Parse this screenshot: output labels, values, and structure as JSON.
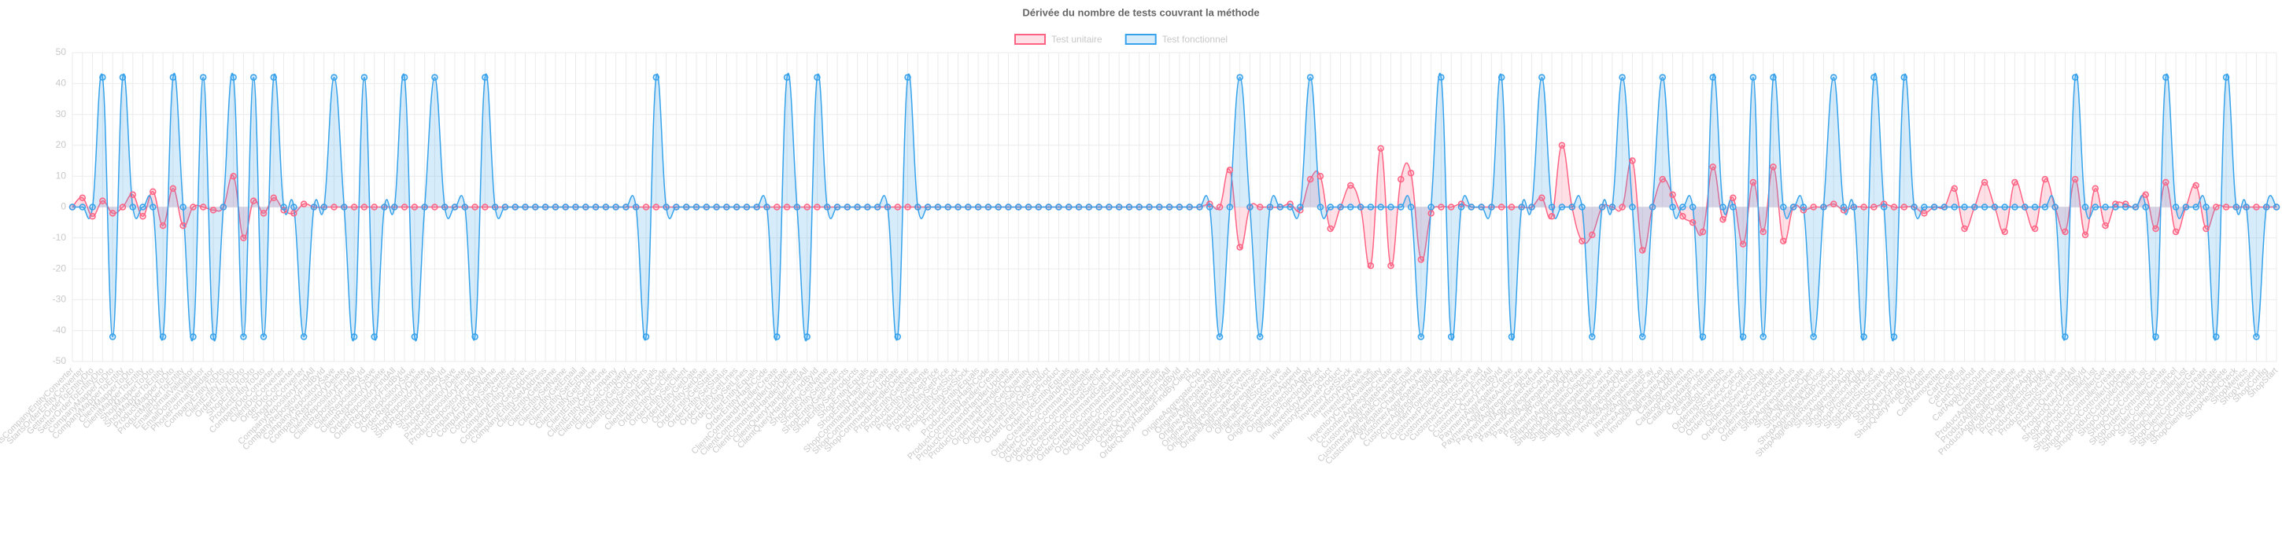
{
  "chart_data": {
    "type": "line",
    "title": "Dérivée du nombre de tests couvrant la méthode",
    "categories": [
      "StartsCompanyEntityConverter",
      "StartsOrderEntityConverter",
      "GetterOrderToEntityDto",
      "SetterOrderToEntityDto",
      "CompanyMapperToDto",
      "CompanyMapperToEntity",
      "ClientMapperToDto",
      "ClientMapperToEntity",
      "ShopMapperToDto",
      "ShopMapperToEntity",
      "ProductMapperToDto",
      "ProductMapperToEntity",
      "EmailFormatValidator",
      "EmailDomainValidator",
      "PhoneFormatValidator",
      "CompanyEntityToDto",
      "ClientEntityToDto",
      "OrderEntityToDto",
      "ShopEntityToDto",
      "ProductEntityToDto",
      "CompanyDtoConverter",
      "ClientDtoConverter",
      "OrderDtoConverter",
      "ShopDtoConverter",
      "CompanyRepositoryFindAll",
      "CompanyRepositoryFindById",
      "CompanyRepositorySave",
      "CompanyRepositoryDelete",
      "ClientRepositoryFindAll",
      "ClientRepositoryFindById",
      "ClientRepositorySave",
      "ClientRepositoryDelete",
      "OrderRepositoryFindAll",
      "OrderRepositoryFindById",
      "OrderRepositorySave",
      "OrderRepositoryDelete",
      "ShopRepositoryFindAll",
      "ShopRepositoryFindById",
      "ShopRepositorySave",
      "ShopRepositoryDelete",
      "ProductRepositoryFindAll",
      "ProductRepositoryFindById",
      "CompanyEntityGetName",
      "CompanyEntitySetName",
      "CompanyEntityGetSiret",
      "CompanyEntitySetSiret",
      "CompanyEntityGetAddress",
      "CompanyEntitySetAddress",
      "ClientEntityGetName",
      "ClientEntitySetName",
      "ClientEntityGetEmail",
      "ClientEntitySetEmail",
      "ClientEntityGetPhone",
      "ClientEntitySetPhone",
      "ClientEntityGetCompany",
      "ClientEntitySetCompany",
      "ClientEntityGetOrders",
      "ClientEntitySetOrders",
      "ClientEntityEquals",
      "ClientEntityHashCode",
      "OrderEntityGetClient",
      "OrderEntitySetClient",
      "OrderEntityGetDate",
      "OrderEntitySetDate",
      "OrderEntityGetStatus",
      "OrderEntitySetStatus",
      "OrderEntityGetLines",
      "OrderEntitySetLines",
      "OrderEntityEquals",
      "OrderEntityHashCode",
      "ClientCommandHandlerCreate",
      "ClientCommandHandlerUpdate",
      "ClientCommandHandlerDelete",
      "ClientQueryHandlerFindAll",
      "ClientQueryHandlerFindById",
      "ShopEntityGetName",
      "ShopEntitySetName",
      "ShopEntityGetProducts",
      "ShopEntitySetProducts",
      "ShopEntityEquals",
      "ShopEntityHashCode",
      "ShopCommandHandlerCreate",
      "ShopCommandHandlerUpdate",
      "ShopCommandHandlerDelete",
      "ProductEntityGetName",
      "ProductEntitySetName",
      "ProductEntityGetPrice",
      "ProductEntitySetPrice",
      "ProductEntityGetStock",
      "ProductEntitySetStock",
      "ProductEntityEquals",
      "ProductEntityHashCode",
      "ProductCommandHandlerCreate",
      "ProductCommandHandlerUpdate",
      "ProductCommandHandlerDelete",
      "OrderLineEntityGetQuantity",
      "OrderLineEntitySetQuantity",
      "OrderLineEntityGetProduct",
      "OrderLineEntitySetProduct",
      "OrderLineEntityEquals",
      "OrderCreationCommandHandle",
      "OrderCreationCommandValidate",
      "OrderCreationCommandGetClient",
      "OrderCreationCommandSetClient",
      "OrderCreationCommandGetLines",
      "OrderCreationCommandSetLines",
      "OrderUpdateCommandHandle",
      "OrderUpdateCommandValidate",
      "OrderDeleteCommandHandle",
      "OrderQueryHandlerFindAll",
      "OrderQueryHandlerFindById",
      "OrderQueryHandlerFindByClient",
      "Plop",
      "OrigineAggregateCreate",
      "OrigineAggregateApply",
      "OrigineAggregateValidate",
      "OrigineAggregateGetEvents",
      "OrigineAggregateClearEvents",
      "OrigineAggregateGetVersion",
      "OrigineAggregateGetId",
      "OrigineEventStoreSave",
      "OrigineEventStoreLoad",
      "OrigineEventStoreAppend",
      "OrigineProjectionApply",
      "OrigineProjectionReset",
      "InventoryAddProduct",
      "InventoryRemoveProduct",
      "InventoryGetStock",
      "InventoryReserve",
      "InventoryRelease",
      "InventoryCheckAvailability",
      "CustomerAggregateCreate",
      "CustomerAggregateRename",
      "CustomerAggregateChangeEmail",
      "CustomerAggregateChangePhone",
      "CustomerAggregateApply",
      "CustomerAggregateValidate",
      "CustomerProjectionApply",
      "CustomerProjectionReset",
      "CustomerEventStoreSave",
      "CustomerEventStoreLoad",
      "CustomerQueryFindAll",
      "CustomerQueryFindById",
      "PaymentAggregateCreate",
      "PaymentAggregateAuthorize",
      "PaymentAggregateCapture",
      "PaymentAggregateRefund",
      "PaymentAggregateCancel",
      "PaymentAggregateApply",
      "PaymentProjectionApply",
      "ShippingAggregateCreate",
      "ShippingAggregateDispatch",
      "ShippingAggregateDeliver",
      "ShippingAggregateCancel",
      "ShippingAggregateApply",
      "InvoiceAggregateCreate",
      "InvoiceAggregateIssue",
      "InvoiceAggregatePay",
      "InvoiceAggregateCancel",
      "InvoiceAggregateApply",
      "CatalogAddItem",
      "CatalogRemoveItem",
      "CatalogUpdatePrice",
      "CatalogFindItem",
      "CatalogListItems",
      "OrderingServicePlace",
      "OrderingServiceCancel",
      "OrderingServiceConfirm",
      "OrderingServiceShip",
      "OrderingServiceComplete",
      "OrderingServiceRefund",
      "OrderingServiceGetStatus",
      "ShopAggregateCreate",
      "ShopAggregateOpen",
      "ShopAggregateClose",
      "ShopAggregateAddProduct",
      "ShopAggregateRemoveProduct",
      "ShopAggregateApply",
      "ShopProjectionApply",
      "ShopProjectionReset",
      "ShopEventStoreSave",
      "ShopEventStoreLoad",
      "ShopQueryFindAll",
      "ShopQueryFindById",
      "ShopQueryFindByOwner",
      "CartAddItem",
      "CartRemoveItem",
      "CartClear",
      "CartGetTotal",
      "CartCheckout",
      "CartApplyDiscount",
      "CartGetItems",
      "ProductAggregateCreate",
      "ProductAggregateRename",
      "ProductAggregateChangePrice",
      "ProductAggregateApply",
      "ProductProjectionApply",
      "ProductEventStoreSave",
      "ProductEventStoreLoad",
      "ProductQueryFindAll",
      "ProductQueryFindById",
      "ShopProductControllerList",
      "ShopProductControllerGet",
      "ShopProductControllerCreate",
      "ShopProductControllerUpdate",
      "ShopProductControllerDelete",
      "ShopOrderControllerList",
      "ShopOrderControllerGet",
      "ShopOrderControllerCreate",
      "ShopOrderControllerCancel",
      "ShopClientControllerList",
      "ShopClientControllerGet",
      "ShopClientControllerCreate",
      "ShopClientControllerUpdate",
      "ShopClientControllerDelete",
      "ShopHealthCheck",
      "ShopMetrics",
      "ShopVersion",
      "ShopConfig",
      "ShopStart"
    ],
    "series": [
      {
        "name": "Test unitaire",
        "color": "#ff6384",
        "fill": "rgba(255,99,132,0.2)",
        "values": [
          0,
          3,
          -3,
          2,
          -2,
          0,
          4,
          -3,
          5,
          -6,
          6,
          -6,
          0,
          0,
          -1,
          0,
          10,
          -10,
          2,
          -2,
          3,
          -1,
          -2,
          1,
          0,
          0,
          0,
          0,
          0,
          0,
          0,
          0,
          0,
          0,
          0,
          0,
          0,
          0,
          0,
          0,
          0,
          0,
          0,
          0,
          0,
          0,
          0,
          0,
          0,
          0,
          0,
          0,
          0,
          0,
          0,
          0,
          0,
          0,
          0,
          0,
          0,
          0,
          0,
          0,
          0,
          0,
          0,
          0,
          0,
          0,
          0,
          0,
          0,
          0,
          0,
          0,
          0,
          0,
          0,
          0,
          0,
          0,
          0,
          0,
          0,
          0,
          0,
          0,
          0,
          0,
          0,
          0,
          0,
          0,
          0,
          0,
          0,
          0,
          0,
          0,
          0,
          0,
          0,
          0,
          0,
          0,
          0,
          0,
          0,
          0,
          0,
          0,
          0,
          1,
          0,
          12,
          -13,
          0,
          0,
          0,
          0,
          1,
          -1,
          9,
          10,
          -7,
          0,
          7,
          0,
          -19,
          19,
          -19,
          9,
          11,
          -17,
          -2,
          0,
          0,
          1,
          0,
          0,
          0,
          0,
          0,
          0,
          0,
          3,
          -3,
          20,
          0,
          -11,
          -9,
          0,
          0,
          0,
          15,
          -14,
          0,
          9,
          4,
          -3,
          -5,
          -8,
          13,
          -4,
          3,
          -12,
          8,
          -8,
          13,
          -11,
          0,
          -1,
          0,
          0,
          1,
          -1,
          0,
          0,
          0,
          1,
          0,
          0,
          0,
          -2,
          0,
          0,
          6,
          -7,
          0,
          8,
          0,
          -8,
          8,
          0,
          -7,
          9,
          0,
          -8,
          9,
          -9,
          6,
          -6,
          1,
          1,
          0,
          4,
          -7,
          8,
          -8,
          0,
          7,
          -7,
          0,
          0,
          0,
          0,
          0,
          0,
          0
        ]
      },
      {
        "name": "Test fonctionnel",
        "color": "#36a2eb",
        "fill": "rgba(54,162,235,0.2)",
        "values": [
          0,
          0,
          0,
          42,
          -42,
          42,
          0,
          0,
          0,
          -42,
          42,
          0,
          -42,
          42,
          -42,
          0,
          42,
          -42,
          42,
          -42,
          42,
          0,
          0,
          -42,
          0,
          0,
          42,
          0,
          -42,
          42,
          -42,
          0,
          0,
          42,
          -42,
          0,
          42,
          0,
          0,
          0,
          -42,
          42,
          0,
          0,
          0,
          0,
          0,
          0,
          0,
          0,
          0,
          0,
          0,
          0,
          0,
          0,
          0,
          -42,
          42,
          0,
          0,
          0,
          0,
          0,
          0,
          0,
          0,
          0,
          0,
          0,
          -42,
          42,
          0,
          -42,
          42,
          0,
          0,
          0,
          0,
          0,
          0,
          0,
          -42,
          42,
          0,
          0,
          0,
          0,
          0,
          0,
          0,
          0,
          0,
          0,
          0,
          0,
          0,
          0,
          0,
          0,
          0,
          0,
          0,
          0,
          0,
          0,
          0,
          0,
          0,
          0,
          0,
          0,
          0,
          0,
          -42,
          0,
          42,
          0,
          -42,
          0,
          0,
          0,
          0,
          42,
          0,
          0,
          0,
          0,
          0,
          0,
          0,
          0,
          0,
          0,
          -42,
          0,
          42,
          -42,
          0,
          0,
          0,
          0,
          42,
          -42,
          0,
          0,
          42,
          0,
          0,
          0,
          0,
          -42,
          0,
          0,
          42,
          0,
          -42,
          0,
          42,
          0,
          0,
          0,
          -42,
          42,
          0,
          0,
          -42,
          42,
          -42,
          42,
          0,
          0,
          0,
          -42,
          0,
          42,
          0,
          0,
          -42,
          42,
          0,
          -42,
          42,
          0,
          0,
          0,
          0,
          0,
          0,
          0,
          0,
          0,
          0,
          0,
          0,
          0,
          0,
          0,
          -42,
          42,
          0,
          0,
          0,
          0,
          0,
          0,
          0,
          -42,
          42,
          0,
          0,
          0,
          0,
          -42,
          42,
          0,
          0,
          -42,
          0,
          0
        ]
      }
    ],
    "ylim": [
      -50,
      50
    ],
    "yticks": [
      -50,
      -40,
      -30,
      -20,
      -10,
      0,
      10,
      20,
      30,
      40,
      50
    ],
    "grid": true,
    "legend": "top"
  }
}
